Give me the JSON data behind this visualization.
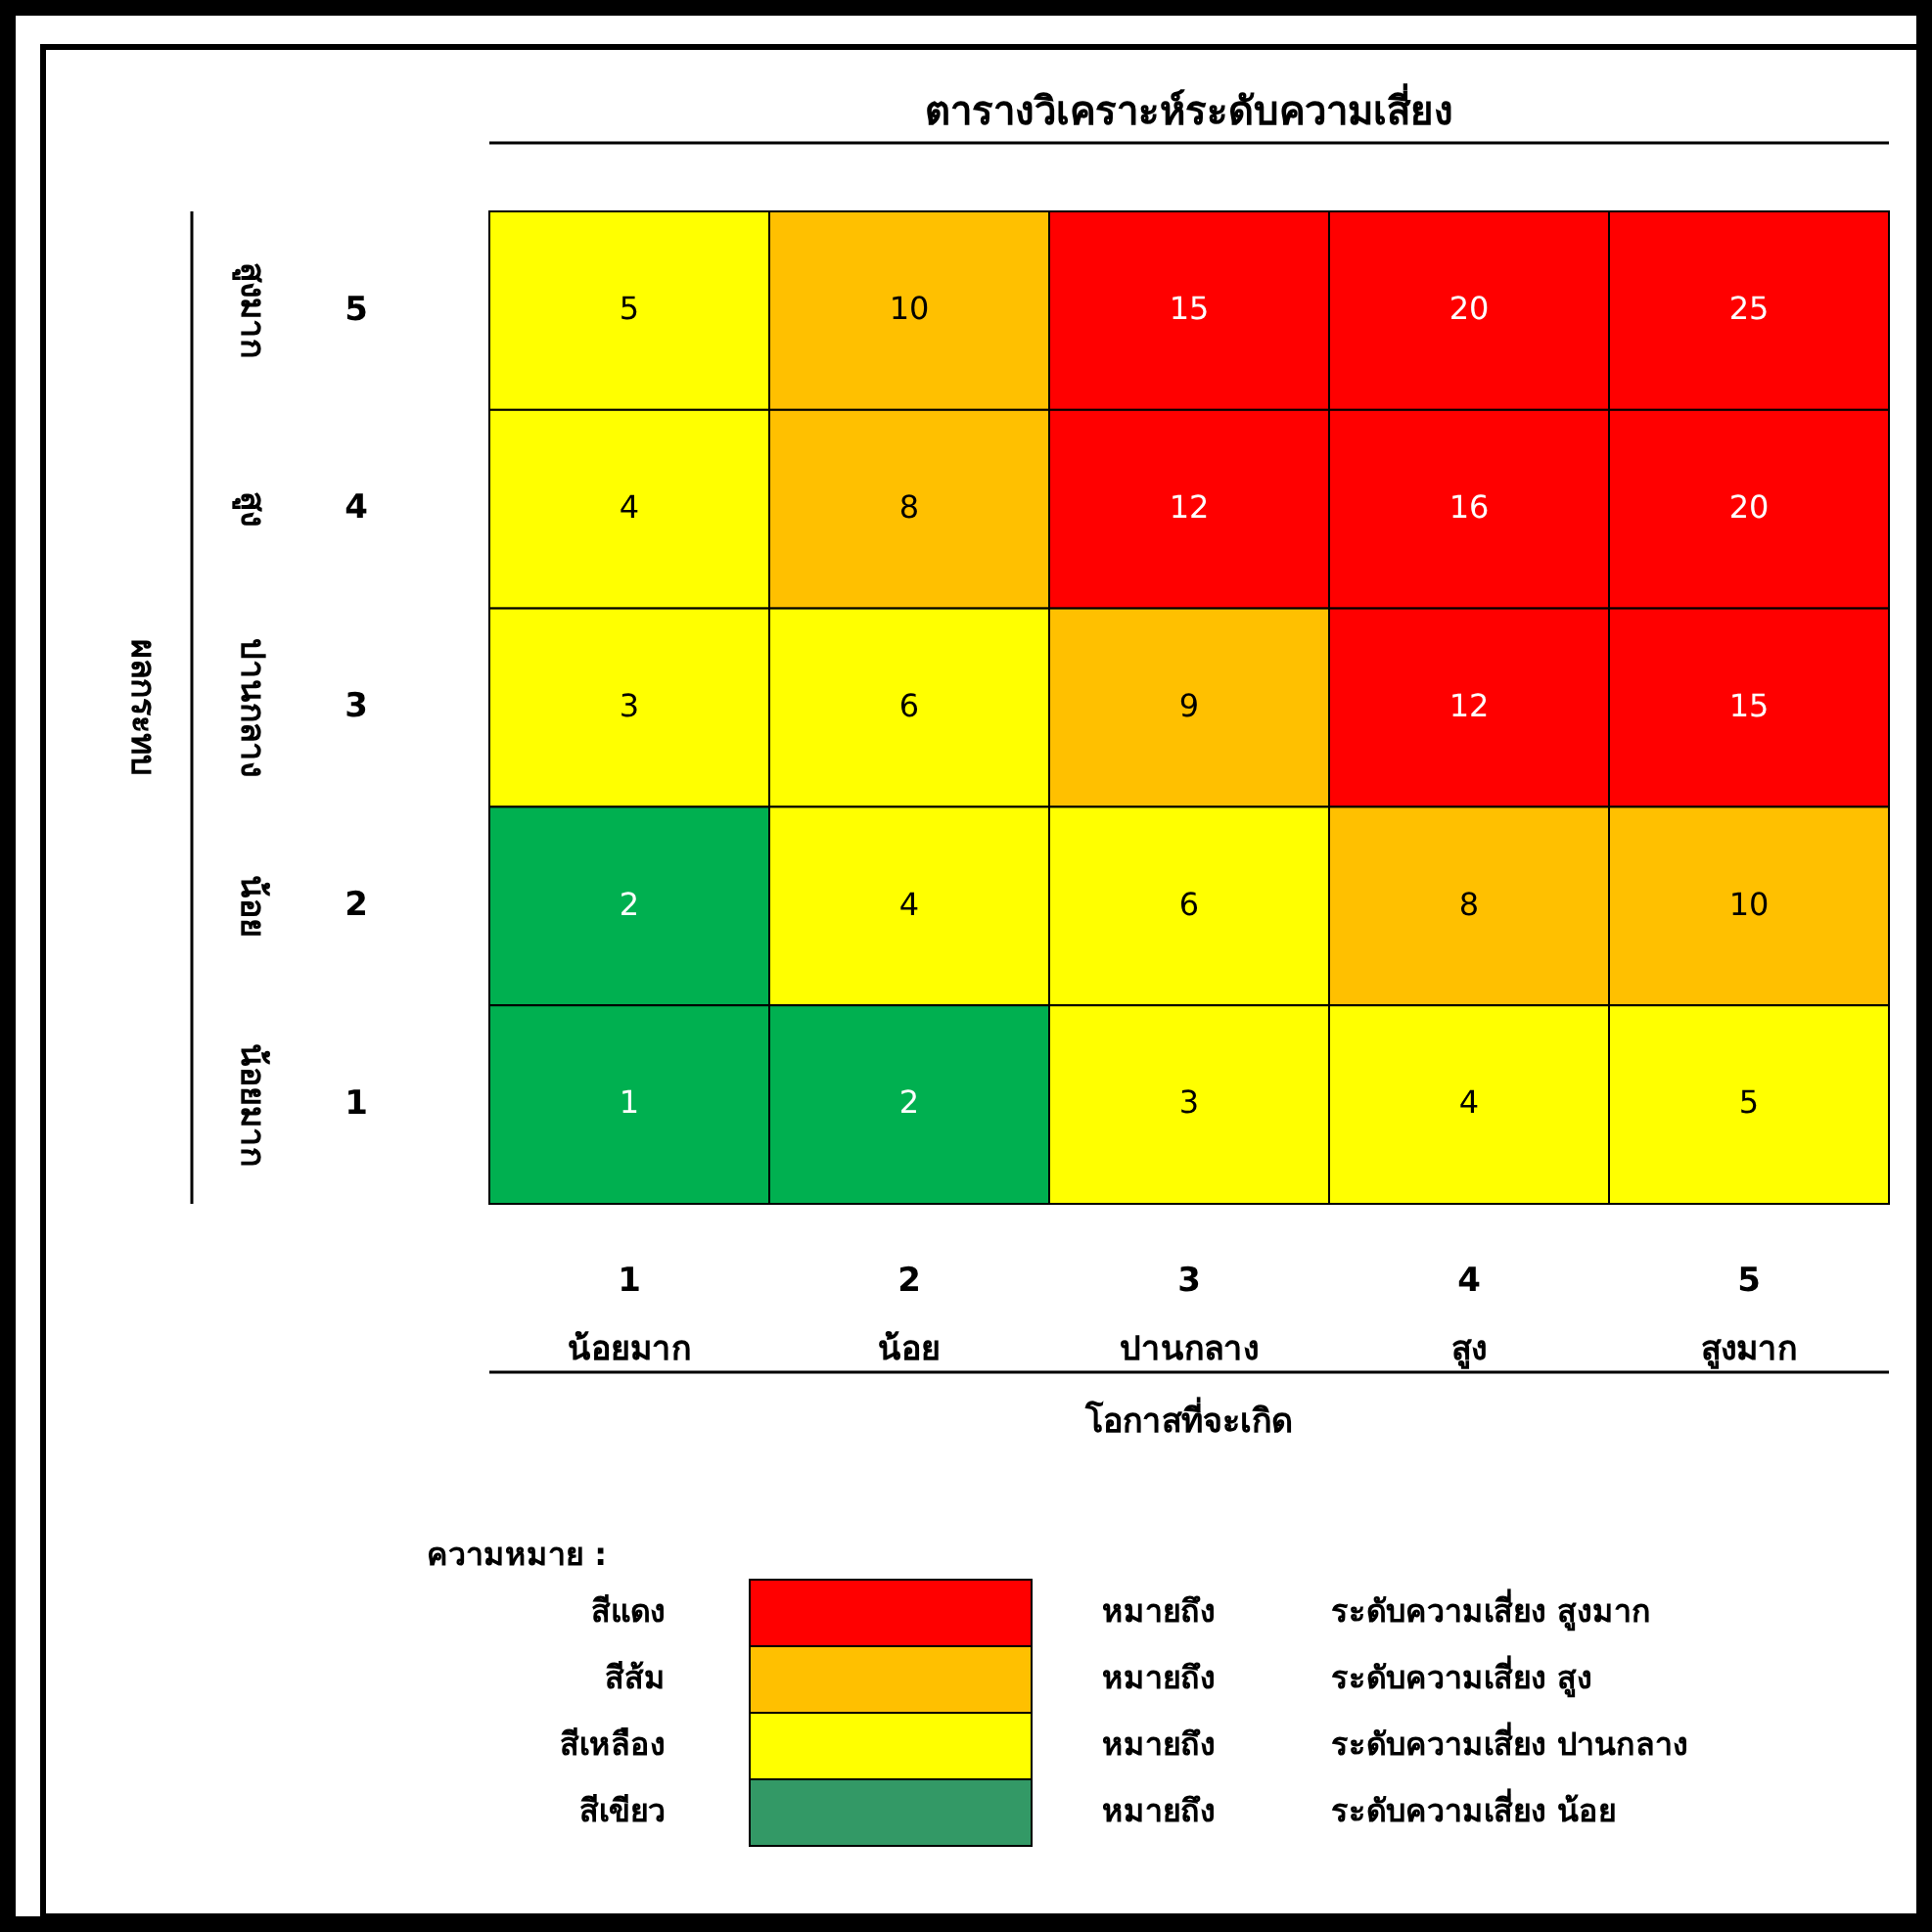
{
  "chart_data": [
    {
      "type": "heatmap",
      "title": "ตารางวิเคราะห์ระดับความเสี่ยง",
      "xlabel": "โอกาสที่จะเกิด",
      "ylabel": "ผลกระทบ",
      "categories": [
        "1\nน้อยมาก",
        "2\nน้อย",
        "3\nปานกลาง",
        "4\nสูง",
        "5\nสูงมาก"
      ],
      "y_categories": [
        "สูงมาก",
        "สูง",
        "ปานกลาง",
        "น้อย",
        "น้อยมาก"
      ],
      "y2_categories": [
        "5",
        "4",
        "3",
        "2",
        "1"
      ],
      "cells": [
        [
          5,
          10,
          15,
          20,
          25
        ],
        [
          4,
          8,
          12,
          16,
          20
        ],
        [
          3,
          6,
          9,
          12,
          15
        ],
        [
          2,
          4,
          6,
          8,
          10
        ],
        [
          1,
          2,
          3,
          4,
          5
        ]
      ],
      "colors": [
        [
          "#ffff00",
          "#ffc000",
          "#ff0000",
          "#ff0000",
          "#ff0000"
        ],
        [
          "#ffff00",
          "#ffc000",
          "#ff0000",
          "#ff0000",
          "#ff0000"
        ],
        [
          "#ffff00",
          "#ffff00",
          "#ffc000",
          "#ff0000",
          "#ff0000"
        ],
        [
          "#00b050",
          "#ffff00",
          "#ffff00",
          "#ffc000",
          "#ffc000"
        ],
        [
          "#00b050",
          "#00b050",
          "#ffff00",
          "#ffff00",
          "#ffff00"
        ]
      ],
      "data_labels": true
    },
    {
      "type": "other",
      "title": "ความหมาย :",
      "categories": [
        "สีแดง",
        "สีส้ม",
        "สีเหลือง",
        "สีเขียว"
      ],
      "colors": [
        "#ff0000",
        "#ffc000",
        "#ffff00",
        "#339966"
      ],
      "annotations": [
        "หมายถึง",
        "ระดับความเสี่ยง สูงมาก",
        "หมายถึง",
        "ระดับความเสี่ยง สูง",
        "หมายถึง",
        "ระดับความเสี่ยง ปานกลาง",
        "หมายถึง",
        "ระดับความเสี่ยง น้อย"
      ]
    }
  ]
}
